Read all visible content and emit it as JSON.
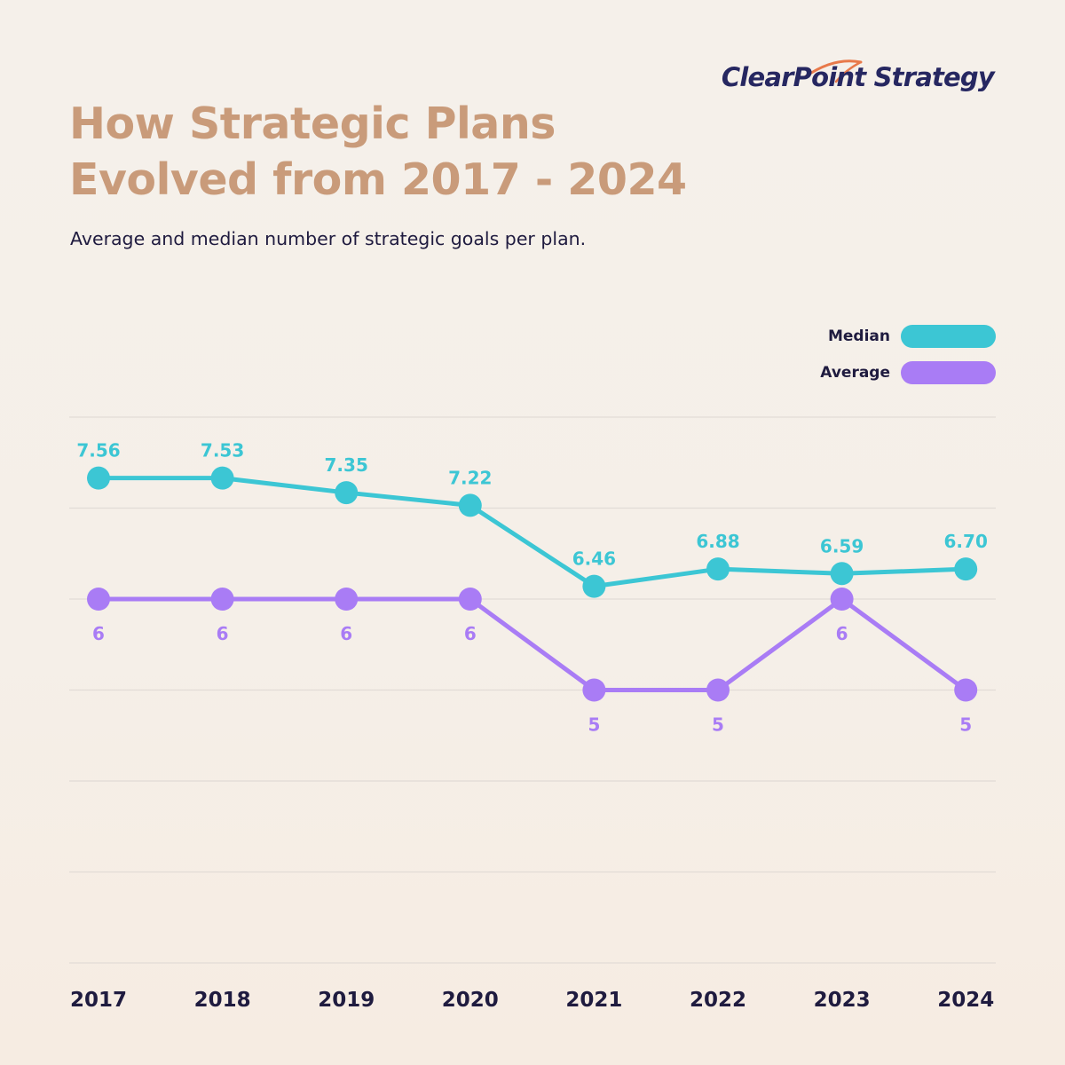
{
  "brand": {
    "name": "ClearPoint Strategy",
    "text_color": "#262761",
    "accent_color": "#e8794a"
  },
  "header": {
    "title_line1": "How Strategic Plans",
    "title_line2": "Evolved from 2017 - 2024",
    "subtitle": "Average and median number of strategic goals per plan."
  },
  "legend": {
    "items": [
      {
        "label": "Median",
        "color": "#3cc6d4"
      },
      {
        "label": "Average",
        "color": "#a97cf5"
      }
    ]
  },
  "chart_data": {
    "type": "line",
    "title": "How Strategic Plans Evolved from 2017 - 2024",
    "subtitle": "Average and median number of strategic goals per plan.",
    "categories": [
      "2017",
      "2018",
      "2019",
      "2020",
      "2021",
      "2022",
      "2023",
      "2024"
    ],
    "series": [
      {
        "name": "Median",
        "color": "#3cc6d4",
        "values": [
          7.56,
          7.53,
          7.35,
          7.22,
          6.46,
          6.88,
          6.59,
          6.7
        ],
        "labels": [
          "7.56",
          "7.53",
          "7.35",
          "7.22",
          "6.46",
          "6.88",
          "6.59",
          "6.70"
        ],
        "plot_values": [
          7.33,
          7.33,
          7.17,
          7.03,
          6.14,
          6.33,
          6.28,
          6.33
        ],
        "label_position": "above"
      },
      {
        "name": "Average",
        "color": "#a97cf5",
        "values": [
          6,
          6,
          6,
          6,
          5,
          5,
          6,
          5
        ],
        "labels": [
          "6",
          "6",
          "6",
          "6",
          "5",
          "5",
          "6",
          "5"
        ],
        "plot_values": [
          6,
          6,
          6,
          6,
          5,
          5,
          6,
          5
        ],
        "label_position": "below"
      }
    ],
    "ylim": [
      2,
      8
    ],
    "gridlines": [
      2,
      3,
      4,
      5,
      6,
      7,
      8
    ],
    "grid": true,
    "xlabel": "",
    "ylabel": "",
    "legend_position": "top-right"
  }
}
